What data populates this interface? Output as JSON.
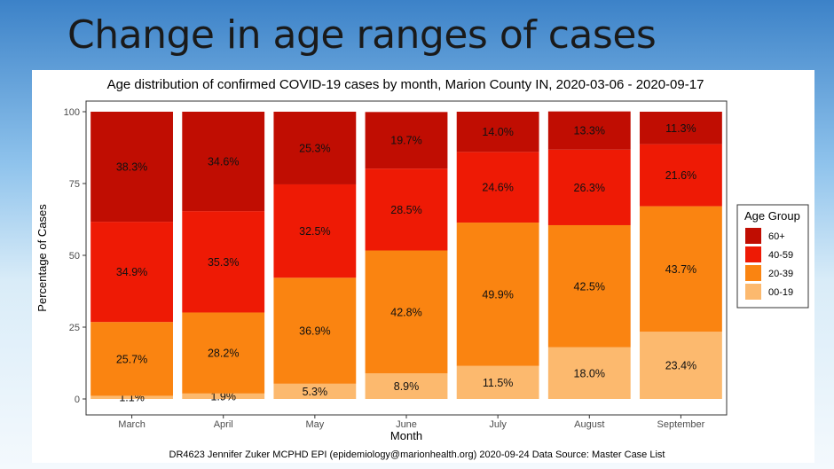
{
  "slide": {
    "title": "Change in age ranges of cases"
  },
  "chart_data": {
    "type": "bar",
    "stacked": true,
    "title": "Age distribution of confirmed COVID-19 cases by month, Marion County IN, 2020-03-06 - 2020-09-17",
    "xlabel": "Month",
    "ylabel": "Percentage of Cases",
    "ylim": [
      0,
      100
    ],
    "yticks": [
      "0",
      "25",
      "50",
      "75",
      "100"
    ],
    "categories": [
      "March",
      "April",
      "May",
      "June",
      "July",
      "August",
      "September"
    ],
    "legend_title": "Age Group",
    "legend_position": "right",
    "series": [
      {
        "name": "00-19",
        "color": "#fcb96e",
        "values": [
          1.1,
          1.9,
          5.3,
          8.9,
          11.5,
          18.0,
          23.4
        ],
        "labels": [
          "1.1%",
          "1.9%",
          "5.3%",
          "8.9%",
          "11.5%",
          "18.0%",
          "23.4%"
        ]
      },
      {
        "name": "20-39",
        "color": "#fa8411",
        "values": [
          25.7,
          28.2,
          36.9,
          42.8,
          49.9,
          42.5,
          43.7
        ],
        "labels": [
          "25.7%",
          "28.2%",
          "36.9%",
          "42.8%",
          "49.9%",
          "42.5%",
          "43.7%"
        ]
      },
      {
        "name": "40-59",
        "color": "#ee1a05",
        "values": [
          34.9,
          35.3,
          32.5,
          28.5,
          24.6,
          26.3,
          21.6
        ],
        "labels": [
          "34.9%",
          "35.3%",
          "32.5%",
          "28.5%",
          "24.6%",
          "26.3%",
          "21.6%"
        ]
      },
      {
        "name": "60+",
        "color": "#c00d02",
        "values": [
          38.3,
          34.6,
          25.3,
          19.7,
          14.0,
          13.3,
          11.3
        ],
        "labels": [
          "38.3%",
          "34.6%",
          "25.3%",
          "19.7%",
          "14.0%",
          "13.3%",
          "11.3%"
        ]
      }
    ],
    "legend_order": [
      "60+",
      "40-59",
      "20-39",
      "00-19"
    ]
  },
  "caption": "DR4623 Jennifer Zuker MCPHD EPI (epidemiology@marionhealth.org) 2020-09-24 Data Source: Master Case List"
}
